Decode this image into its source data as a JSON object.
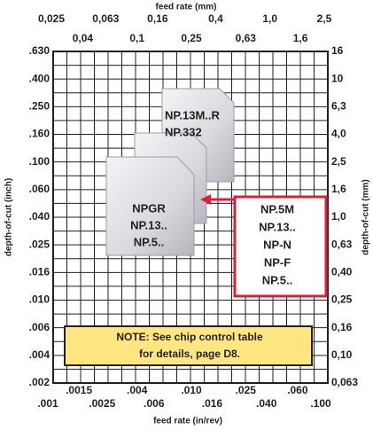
{
  "axes": {
    "top_title": "feed rate (mm)",
    "top_ticks_row1": [
      "0,025",
      "0,063",
      "0,16",
      "0,4",
      "1,0",
      "2,5"
    ],
    "top_ticks_row2": [
      "0,04",
      "0,1",
      "0,25",
      "0,63",
      "1,6"
    ],
    "bottom_ticks_row1": [
      ".0015",
      ".004",
      ".010",
      ".025",
      ".060"
    ],
    "bottom_ticks_row2": [
      ".001",
      ".0025",
      ".006",
      ".016",
      ".040",
      ".100"
    ],
    "bottom_title": "feed rate (in/rev)",
    "left_title": "depth-of-cut (inch)",
    "left_ticks": [
      ".630",
      ".400",
      ".250",
      ".160",
      ".100",
      ".060",
      ".040",
      ".025",
      ".016",
      ".010",
      ".006",
      ".004",
      ".002"
    ],
    "right_title": "depth-of-cut (mm)",
    "right_ticks": [
      "16",
      "10",
      "6,3",
      "4,0",
      "2,5",
      "1,6",
      "1,0",
      "0,63",
      "0,40",
      "0,25",
      "0,16",
      "0,10",
      "0,063"
    ]
  },
  "inserts": [
    {
      "lines": [
        "NP.13M..R",
        "NP.332"
      ]
    },
    {
      "lines": [
        "NPGR",
        "NP.13..",
        "NP.5.."
      ]
    }
  ],
  "callout": {
    "lines": [
      "NP.5M",
      "NP.13..",
      "NP-N",
      "NP-F",
      "NP.5.."
    ]
  },
  "note": {
    "lines": [
      "NOTE: See chip control table",
      "for details, page D8."
    ]
  }
}
